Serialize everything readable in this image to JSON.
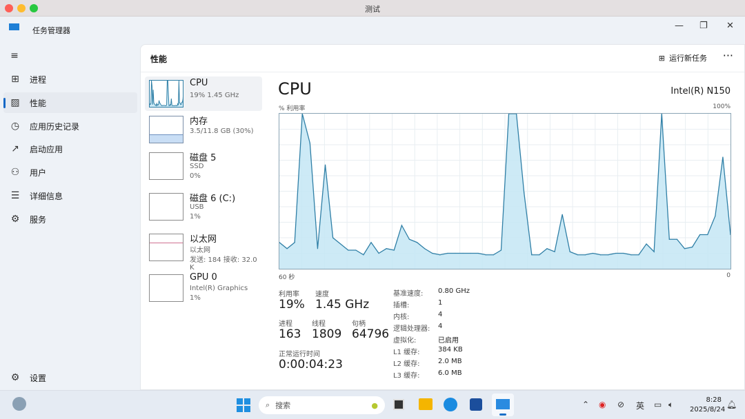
{
  "window": {
    "title": "测试"
  },
  "app": {
    "name": "任务管理器"
  },
  "nav": {
    "items": [
      {
        "label": "进程",
        "icon": "processes-icon"
      },
      {
        "label": "性能",
        "icon": "performance-icon",
        "active": true
      },
      {
        "label": "应用历史记录",
        "icon": "history-icon"
      },
      {
        "label": "启动应用",
        "icon": "startup-icon"
      },
      {
        "label": "用户",
        "icon": "users-icon"
      },
      {
        "label": "详细信息",
        "icon": "details-icon"
      },
      {
        "label": "服务",
        "icon": "services-icon"
      }
    ],
    "settings": "设置"
  },
  "header": {
    "title": "性能",
    "run_task": "运行新任务",
    "more": "···"
  },
  "devices": [
    {
      "name": "CPU",
      "line1": "19% 1.45 GHz",
      "line2": ""
    },
    {
      "name": "内存",
      "line1": "3.5/11.8 GB (30%)",
      "line2": ""
    },
    {
      "name": "磁盘 5",
      "line1": "SSD",
      "line2": "0%"
    },
    {
      "name": "磁盘 6 (C:)",
      "line1": "USB",
      "line2": "1%"
    },
    {
      "name": "以太网",
      "line1": "以太网",
      "line2": "发送: 184 接收: 32.0 K"
    },
    {
      "name": "GPU 0",
      "line1": "Intel(R) Graphics",
      "line2": "1%"
    }
  ],
  "memory_fill_percent": 30,
  "cpu": {
    "title": "CPU",
    "model": "Intel(R) N150",
    "y_label": "% 利用率",
    "y_max": "100%",
    "x_left": "60 秒",
    "x_right": "0",
    "stats": {
      "util_label": "利用率",
      "util": "19%",
      "speed_label": "速度",
      "speed": "1.45 GHz",
      "proc_label": "进程",
      "proc": "163",
      "thread_label": "线程",
      "thread": "1809",
      "handle_label": "句柄",
      "handle": "64796",
      "uptime_label": "正常运行时间",
      "uptime": "0:00:04:23"
    },
    "specs": [
      {
        "k": "基准速度:",
        "v": "0.80 GHz"
      },
      {
        "k": "插槽:",
        "v": "1"
      },
      {
        "k": "内核:",
        "v": "4"
      },
      {
        "k": "逻辑处理器:",
        "v": "4"
      },
      {
        "k": "虚拟化:",
        "v": "已启用"
      },
      {
        "k": "L1 缓存:",
        "v": "384 KB"
      },
      {
        "k": "L2 缓存:",
        "v": "2.0 MB"
      },
      {
        "k": "L3 缓存:",
        "v": "6.0 MB"
      }
    ]
  },
  "chart_data": {
    "type": "area",
    "xlabel": "60 秒",
    "ylabel": "% 利用率",
    "ylim": [
      0,
      100
    ],
    "xlim": [
      60,
      0
    ],
    "grid": true,
    "values": [
      17,
      13,
      17,
      100,
      81,
      13,
      67,
      20,
      16,
      12,
      12,
      9,
      17,
      10,
      13,
      12,
      28,
      19,
      17,
      13,
      10,
      9,
      10,
      10,
      10,
      10,
      10,
      9,
      9,
      12,
      100,
      100,
      49,
      9,
      9,
      13,
      11,
      35,
      11,
      9,
      9,
      10,
      9,
      9,
      10,
      10,
      9,
      9,
      16,
      11,
      100,
      19,
      19,
      13,
      14,
      22,
      22,
      34,
      72,
      22
    ],
    "line_color": "#2f7fa6",
    "fill_color": "#c4e6f5"
  },
  "taskbar": {
    "search": "搜索",
    "ime": "英",
    "time": "8:28",
    "date": "2025/8/24"
  }
}
